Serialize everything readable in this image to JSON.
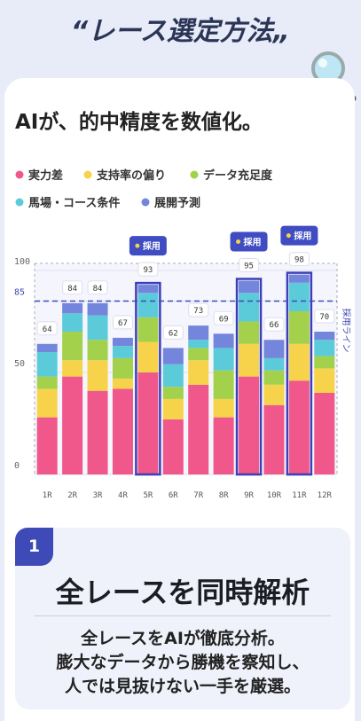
{
  "header": {
    "title": "“レース選定方法„"
  },
  "chart_data": {
    "type": "stacked-bar",
    "title": "AIが、的中精度を数値化。",
    "categories": [
      "1R",
      "2R",
      "3R",
      "4R",
      "5R",
      "6R",
      "7R",
      "8R",
      "9R",
      "10R",
      "11R",
      "12R"
    ],
    "series": [
      {
        "name": "実力差",
        "color": "#f0578a",
        "values": [
          28,
          48,
          41,
          42,
          50,
          27,
          44,
          28,
          48,
          34,
          46,
          40
        ]
      },
      {
        "name": "支持率の偏り",
        "color": "#f6d34a",
        "values": [
          14,
          8,
          15,
          5,
          15,
          10,
          12,
          9,
          16,
          10,
          18,
          12
        ]
      },
      {
        "name": "データ充足度",
        "color": "#a3d14b",
        "values": [
          6,
          14,
          10,
          10,
          12,
          6,
          6,
          14,
          11,
          7,
          16,
          6
        ]
      },
      {
        "name": "馬場・コース条件",
        "color": "#5ccbd9",
        "values": [
          12,
          9,
          12,
          6,
          12,
          11,
          4,
          11,
          14,
          6,
          14,
          8
        ]
      },
      {
        "name": "展開予測",
        "color": "#7486dc",
        "values": [
          4,
          5,
          6,
          4,
          4,
          8,
          7,
          7,
          6,
          9,
          4,
          4
        ]
      }
    ],
    "totals": [
      64,
      84,
      84,
      67,
      93,
      62,
      73,
      69,
      95,
      66,
      98,
      70
    ],
    "badges": [
      null,
      null,
      null,
      null,
      "採用",
      null,
      null,
      null,
      "採用",
      null,
      "採用",
      null
    ],
    "threshold": {
      "value": 85,
      "label": "採用ライン"
    },
    "ylim": [
      0,
      100
    ],
    "yticks": [
      0,
      50,
      85,
      100
    ]
  },
  "feature": {
    "number": "1",
    "title": "全レースを同時解析",
    "lines": [
      "全レースをAIが徹底分析。",
      "膨大なデータから勝機を察知し、",
      "人では見抜けない一手を厳選。"
    ]
  }
}
